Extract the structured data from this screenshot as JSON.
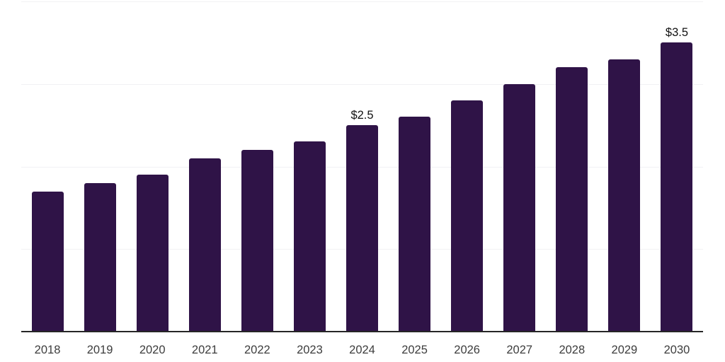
{
  "chart_data": {
    "type": "bar",
    "title": "",
    "xlabel": "",
    "ylabel": "",
    "categories": [
      "2018",
      "2019",
      "2020",
      "2021",
      "2022",
      "2023",
      "2024",
      "2025",
      "2026",
      "2027",
      "2028",
      "2029",
      "2030"
    ],
    "values": [
      1.7,
      1.8,
      1.9,
      2.1,
      2.2,
      2.3,
      2.5,
      2.6,
      2.8,
      3.0,
      3.2,
      3.3,
      3.5
    ],
    "data_labels": {
      "2024": "$2.5",
      "2030": "$3.5"
    },
    "ylim": [
      0,
      4
    ],
    "gridline_values": [
      1,
      2,
      3,
      4
    ],
    "grid": true,
    "y_axis_labels_visible": false,
    "legend": null,
    "colors": {
      "bar": "#2F1347",
      "axis_line": "#262626",
      "gridline": "#F1F1F4",
      "tick_label": "#3D3D3D",
      "data_label": "#111111",
      "background": "#FFFFFF"
    }
  }
}
